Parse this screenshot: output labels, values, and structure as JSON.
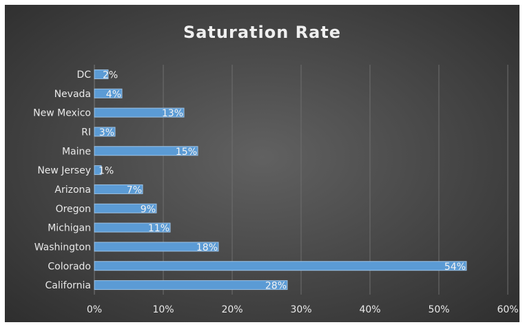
{
  "chart_data": {
    "type": "bar",
    "orientation": "horizontal",
    "title": "Saturation Rate",
    "categories": [
      "DC",
      "Nevada",
      "New Mexico",
      "RI",
      "Maine",
      "New Jersey",
      "Arizona",
      "Oregon",
      "Michigan",
      "Washington",
      "Colorado",
      "California"
    ],
    "values": [
      0.02,
      0.04,
      0.13,
      0.03,
      0.15,
      0.01,
      0.07,
      0.09,
      0.11,
      0.18,
      0.54,
      0.28
    ],
    "data_labels": [
      "2%",
      "4%",
      "13%",
      "3%",
      "15%",
      "1%",
      "7%",
      "9%",
      "11%",
      "18%",
      "54%",
      "28%"
    ],
    "x_ticks": [
      "0%",
      "10%",
      "20%",
      "30%",
      "40%",
      "50%",
      "60%"
    ],
    "xlim": [
      0,
      0.6
    ],
    "xlabel": "",
    "ylabel": "",
    "grid": "vertical",
    "legend": "none",
    "colors": {
      "bar_fill": "#5b9bd5",
      "bar_edge": "#9dc3e6",
      "gridline": "#6e6e6e",
      "text": "#e9e9e9"
    }
  }
}
